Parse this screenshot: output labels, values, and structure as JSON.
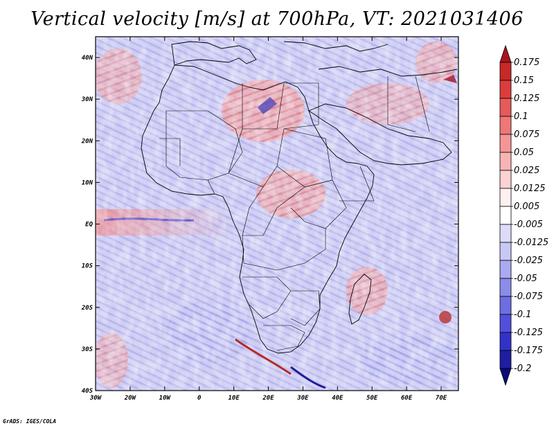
{
  "title": "Vertical velocity [m/s] at 700hPa, VT: 2021031406",
  "credit": "GrADS: IGES/COLA",
  "map": {
    "lon_range": [
      -30,
      75
    ],
    "lat_range": [
      -40,
      45
    ],
    "lon_ticks": [
      "30W",
      "20W",
      "10W",
      "0",
      "10E",
      "20E",
      "30E",
      "40E",
      "50E",
      "60E",
      "70E"
    ],
    "lon_values": [
      -30,
      -20,
      -10,
      0,
      10,
      20,
      30,
      40,
      50,
      60,
      70
    ],
    "lat_ticks": [
      "40N",
      "30N",
      "20N",
      "10N",
      "EQ",
      "10S",
      "20S",
      "30S",
      "40S"
    ],
    "lat_values": [
      40,
      30,
      20,
      10,
      0,
      -10,
      -20,
      -30,
      -40
    ]
  },
  "colorbar": {
    "labels": [
      "0.175",
      "0.15",
      "0.125",
      "0.1",
      "0.075",
      "0.05",
      "0.025",
      "0.0125",
      "0.005",
      "-0.005",
      "-0.0125",
      "-0.025",
      "-0.05",
      "-0.075",
      "-0.1",
      "-0.125",
      "-0.175",
      "-0.2"
    ],
    "colors": [
      "#a8141e",
      "#c82828",
      "#dc3c3c",
      "#e65a5a",
      "#ee7878",
      "#f49696",
      "#f8b4b4",
      "#fcd2d2",
      "#fff0f0",
      "#ffffff",
      "#dcdcfa",
      "#c8c8f5",
      "#aaaaf0",
      "#8c8cea",
      "#6e6ee4",
      "#5050dc",
      "#3232c8",
      "#1e1ea0",
      "#0a0a78"
    ]
  },
  "chart_data": {
    "type": "heatmap",
    "title": "Vertical velocity [m/s] at 700hPa, VT: 2021031406",
    "variable": "Vertical velocity",
    "units": "m/s",
    "level": "700hPa",
    "valid_time": "2021031406",
    "x_range": [
      -30,
      75
    ],
    "y_range": [
      -40,
      45
    ],
    "contour_levels": [
      -0.2,
      -0.175,
      -0.125,
      -0.1,
      -0.075,
      -0.05,
      -0.025,
      -0.0125,
      -0.005,
      0.005,
      0.0125,
      0.025,
      0.05,
      0.075,
      0.1,
      0.125,
      0.15,
      0.175
    ]
  }
}
